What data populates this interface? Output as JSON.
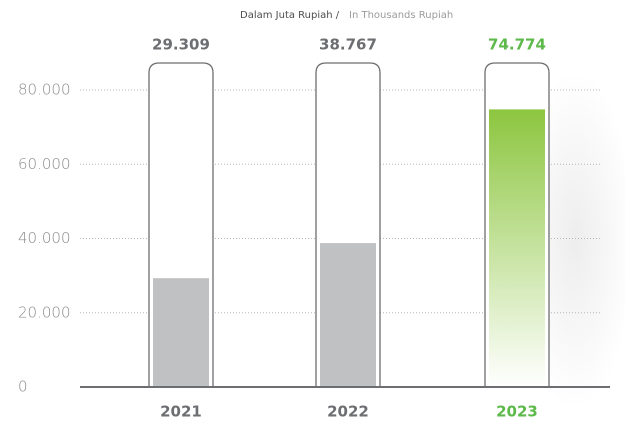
{
  "chart_data": {
    "type": "bar",
    "subtitle": [
      "Dalam Juta Rupiah /",
      "In Thousands Rupiah"
    ],
    "categories": [
      "2021",
      "2022",
      "2023"
    ],
    "values": [
      29309,
      38767,
      74774
    ],
    "value_labels": [
      "29.309",
      "38.767",
      "74.774"
    ],
    "colors": [
      "#c0c1c3",
      "#c0c1c3",
      "#8cc63f"
    ],
    "gradient": [
      false,
      false,
      true
    ],
    "label_colors": [
      "#6d6e71",
      "#6d6e71",
      "#5cb94a"
    ],
    "ylim": [
      0,
      80000
    ],
    "yticks": [
      0,
      {
        "value": 20000,
        "label": "20.000"
      },
      {
        "value": 40000,
        "label": "40.000"
      },
      {
        "value": 60000,
        "label": "60.000"
      },
      {
        "value": 80000,
        "label": "80.000"
      }
    ],
    "grid": true
  }
}
